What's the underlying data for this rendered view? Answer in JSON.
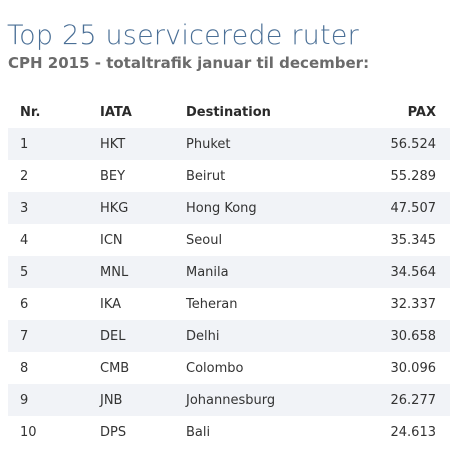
{
  "title": "Top 25 uservicerede ruter",
  "subtitle": "CPH 2015 - totaltrafik januar til december:",
  "table": {
    "headers": {
      "nr": "Nr.",
      "iata": "IATA",
      "destination": "Destination",
      "pax": "PAX"
    },
    "rows": [
      {
        "nr": "1",
        "iata": "HKT",
        "destination": "Phuket",
        "pax": "56.524"
      },
      {
        "nr": "2",
        "iata": "BEY",
        "destination": "Beirut",
        "pax": "55.289"
      },
      {
        "nr": "3",
        "iata": "HKG",
        "destination": "Hong Kong",
        "pax": "47.507"
      },
      {
        "nr": "4",
        "iata": "ICN",
        "destination": "Seoul",
        "pax": "35.345"
      },
      {
        "nr": "5",
        "iata": "MNL",
        "destination": "Manila",
        "pax": "34.564"
      },
      {
        "nr": "6",
        "iata": "IKA",
        "destination": "Teheran",
        "pax": "32.337"
      },
      {
        "nr": "7",
        "iata": "DEL",
        "destination": "Delhi",
        "pax": "30.658"
      },
      {
        "nr": "8",
        "iata": "CMB",
        "destination": "Colombo",
        "pax": "30.096"
      },
      {
        "nr": "9",
        "iata": "JNB",
        "destination": "Johannesburg",
        "pax": "26.277"
      },
      {
        "nr": "10",
        "iata": "DPS",
        "destination": "Bali",
        "pax": "24.613"
      }
    ]
  },
  "colors": {
    "title": "#4a6f96",
    "subtitle": "#6b6b6b",
    "row_stripe": "#f1f3f7"
  }
}
